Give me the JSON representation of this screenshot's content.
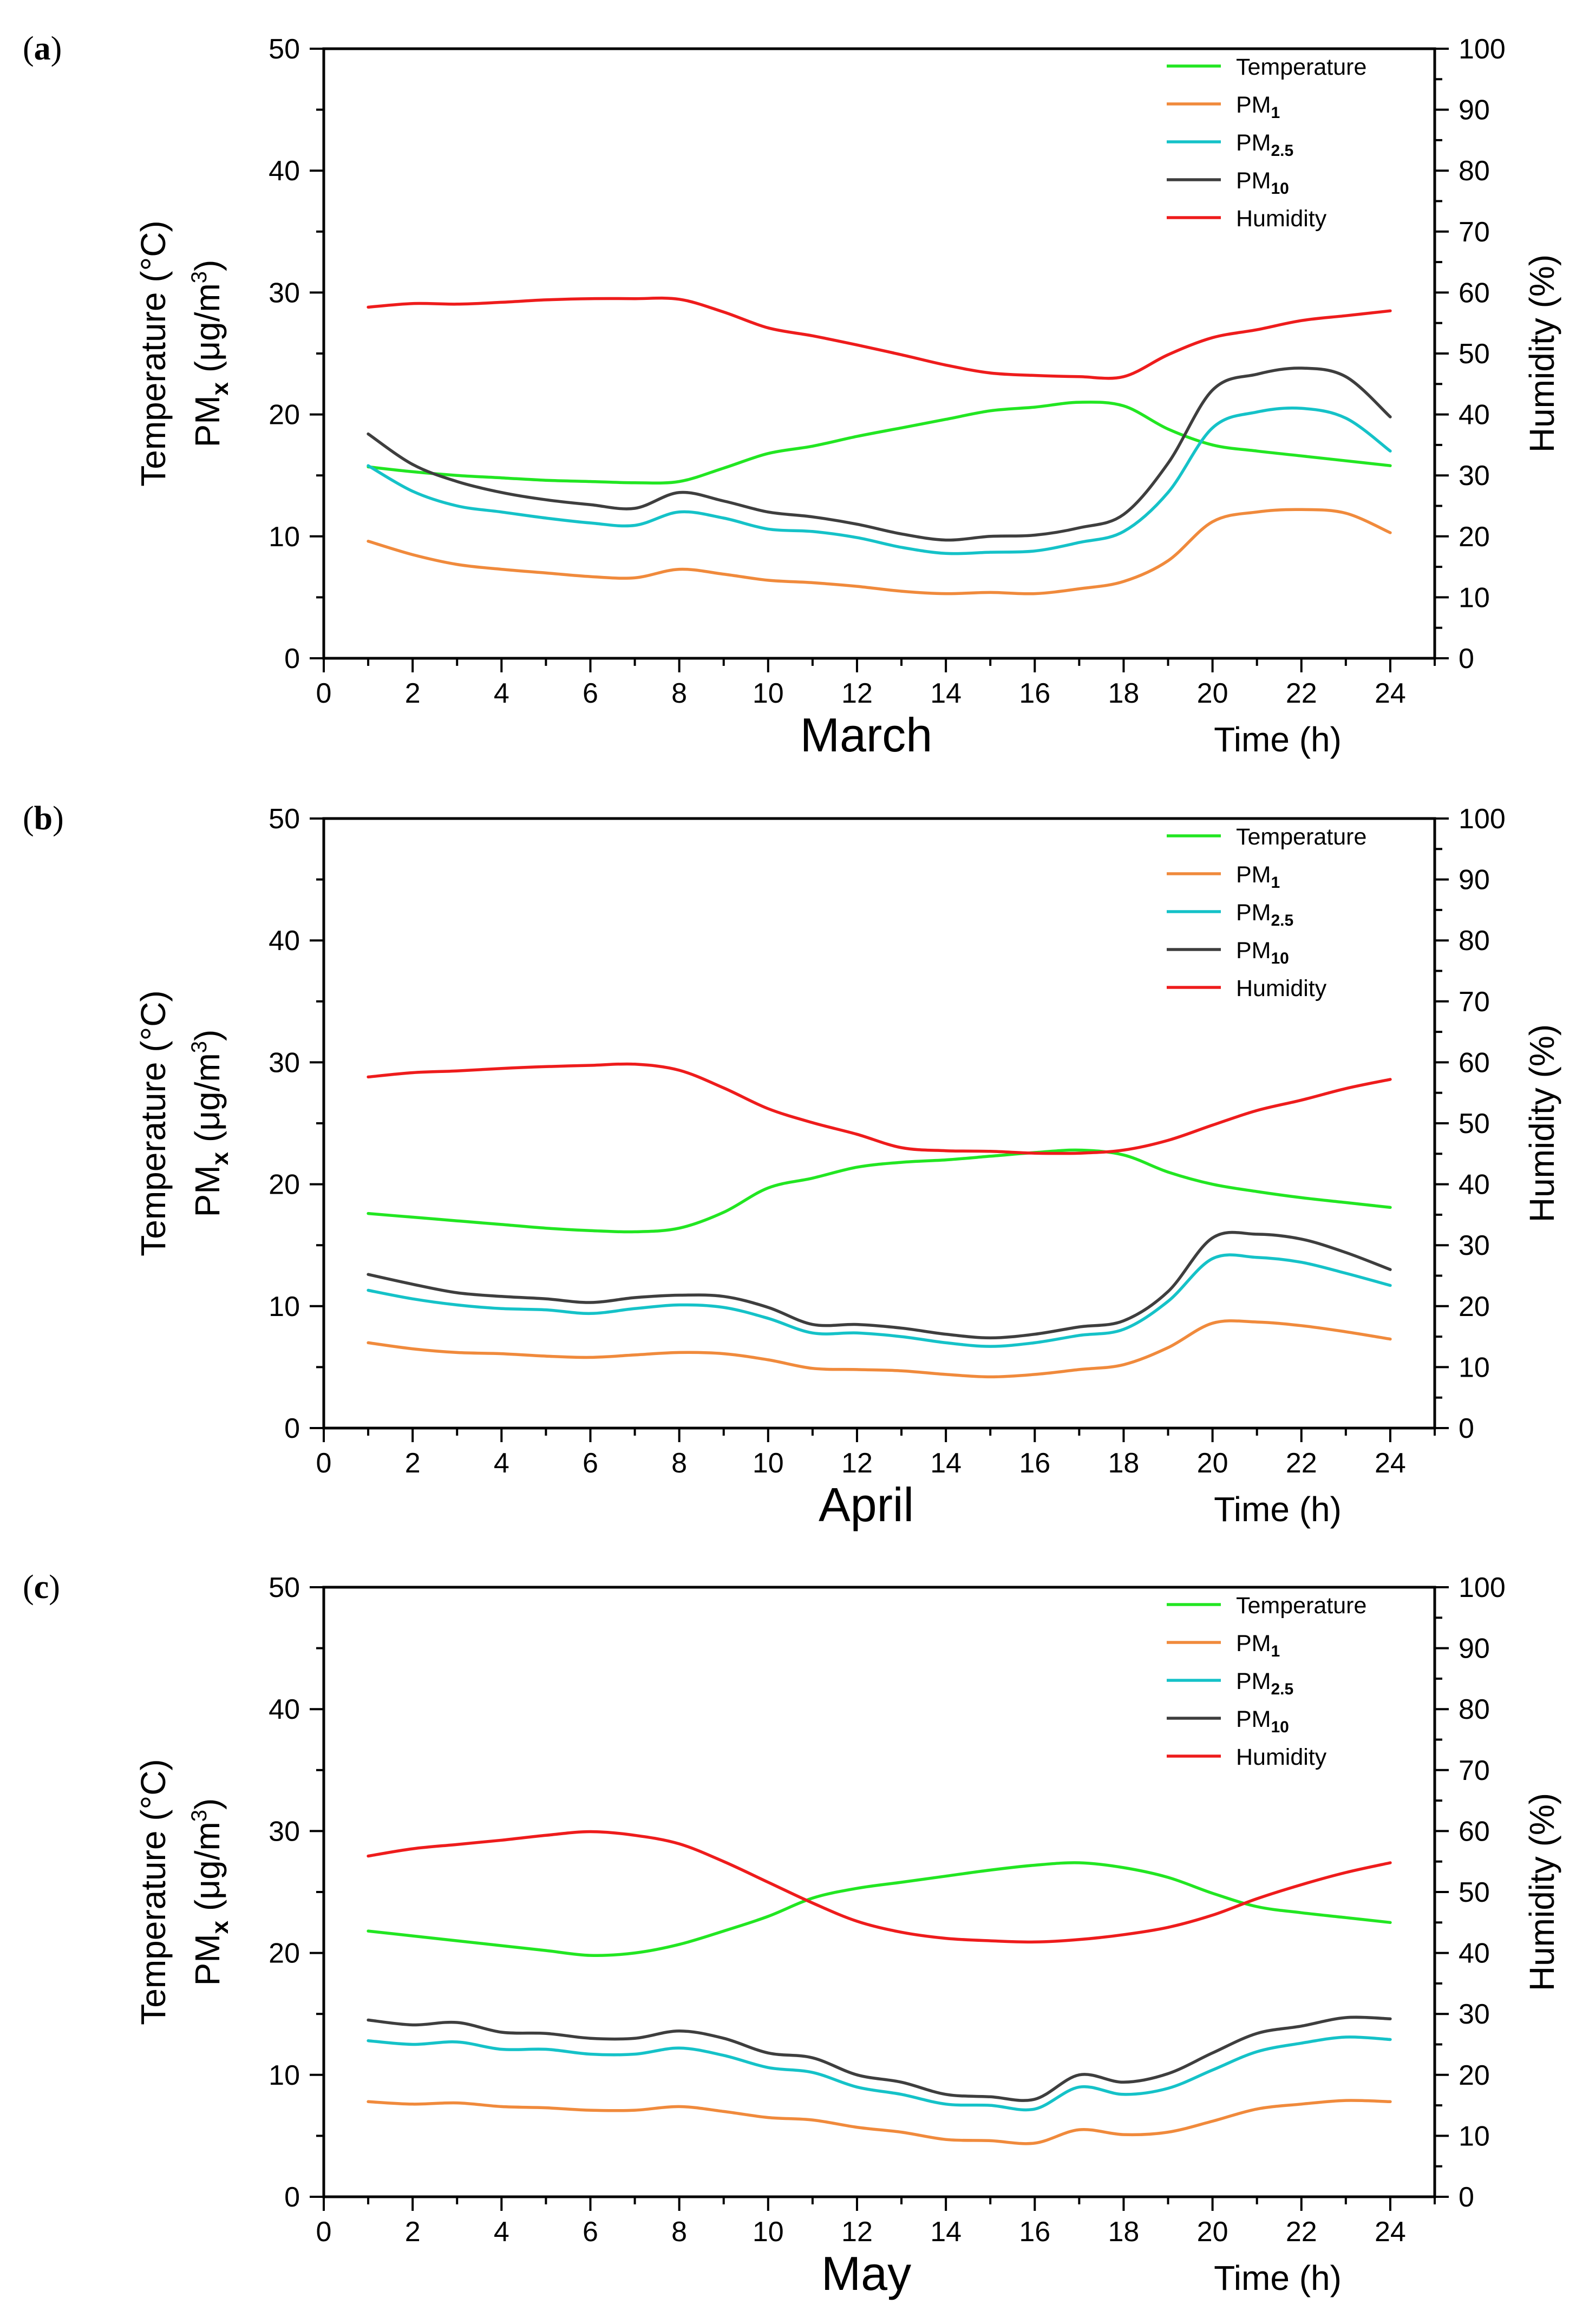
{
  "chart_data": [
    {
      "type": "line",
      "panel_label": "a",
      "title": "March",
      "xlabel": "Time (h)",
      "ylabel_left_line1": "Temperature (°C)",
      "ylabel_left_line2": "PM",
      "ylabel_left_sub": "x",
      "ylabel_left_unit_pre": " (μg/m",
      "ylabel_left_sup": "3",
      "ylabel_left_unit_post": ")",
      "ylabel_right": "Humidity (%)",
      "xlim": [
        0,
        25
      ],
      "ylim": [
        0,
        50
      ],
      "y2lim": [
        0,
        100
      ],
      "xticks": [
        "0",
        "2",
        "4",
        "6",
        "8",
        "10",
        "12",
        "14",
        "16",
        "18",
        "20",
        "22",
        "24"
      ],
      "yticks": [
        "0",
        "10",
        "20",
        "30",
        "40",
        "50"
      ],
      "y2ticks": [
        "0",
        "10",
        "20",
        "30",
        "40",
        "50",
        "60",
        "70",
        "80",
        "90",
        "100"
      ],
      "legend_position": "top-right",
      "x": [
        1,
        2,
        3,
        4,
        5,
        6,
        7,
        8,
        9,
        10,
        11,
        12,
        13,
        14,
        15,
        16,
        17,
        18,
        19,
        20,
        21,
        22,
        23,
        24
      ],
      "series": [
        {
          "name": "Temperature",
          "sub": "",
          "color": "#22e622",
          "axis": "left",
          "values": [
            15.7,
            15.3,
            15.0,
            14.8,
            14.6,
            14.5,
            14.4,
            14.5,
            15.6,
            16.8,
            17.4,
            18.2,
            18.9,
            19.6,
            20.3,
            20.6,
            21.0,
            20.7,
            18.8,
            17.5,
            17.0,
            16.6,
            16.2,
            15.8
          ]
        },
        {
          "name": "PM",
          "sub": "1",
          "color": "#f08a3c",
          "axis": "left",
          "values": [
            9.6,
            8.5,
            7.7,
            7.3,
            7.0,
            6.7,
            6.6,
            7.3,
            6.9,
            6.4,
            6.2,
            5.9,
            5.5,
            5.3,
            5.4,
            5.3,
            5.7,
            6.3,
            8.0,
            11.2,
            12.0,
            12.2,
            11.9,
            10.3
          ]
        },
        {
          "name": "PM",
          "sub": "2.5",
          "color": "#15c2c8",
          "axis": "left",
          "values": [
            15.8,
            13.7,
            12.5,
            12.0,
            11.5,
            11.1,
            10.9,
            12.0,
            11.5,
            10.6,
            10.4,
            9.9,
            9.1,
            8.6,
            8.7,
            8.8,
            9.5,
            10.4,
            13.6,
            18.9,
            20.2,
            20.5,
            19.7,
            17.0
          ]
        },
        {
          "name": "PM",
          "sub": "10",
          "color": "#3e3e3e",
          "axis": "left",
          "values": [
            18.4,
            15.9,
            14.5,
            13.6,
            13.0,
            12.6,
            12.3,
            13.6,
            12.9,
            12.0,
            11.6,
            11.0,
            10.2,
            9.7,
            10.0,
            10.1,
            10.7,
            11.8,
            16.0,
            22.0,
            23.3,
            23.8,
            23.1,
            19.8
          ]
        },
        {
          "name": "Humidity",
          "sub": "",
          "color": "#ee1c1c",
          "axis": "right",
          "values": [
            57.6,
            58.2,
            58.1,
            58.4,
            58.8,
            59.0,
            59.0,
            58.9,
            56.8,
            54.2,
            52.9,
            51.4,
            49.8,
            48.1,
            46.8,
            46.4,
            46.2,
            46.2,
            49.8,
            52.6,
            53.9,
            55.4,
            56.2,
            57.0
          ]
        }
      ]
    },
    {
      "type": "line",
      "panel_label": "b",
      "title": "April",
      "xlabel": "Time (h)",
      "ylabel_left_line1": "Temperature (°C)",
      "ylabel_left_line2": "PM",
      "ylabel_left_sub": "x",
      "ylabel_left_unit_pre": " (μg/m",
      "ylabel_left_sup": "3",
      "ylabel_left_unit_post": ")",
      "ylabel_right": "Humidity (%)",
      "xlim": [
        0,
        25
      ],
      "ylim": [
        0,
        50
      ],
      "y2lim": [
        0,
        100
      ],
      "xticks": [
        "0",
        "2",
        "4",
        "6",
        "8",
        "10",
        "12",
        "14",
        "16",
        "18",
        "20",
        "22",
        "24"
      ],
      "yticks": [
        "0",
        "10",
        "20",
        "30",
        "40",
        "50"
      ],
      "y2ticks": [
        "0",
        "10",
        "20",
        "30",
        "40",
        "50",
        "60",
        "70",
        "80",
        "90",
        "100"
      ],
      "legend_position": "top-right",
      "x": [
        1,
        2,
        3,
        4,
        5,
        6,
        7,
        8,
        9,
        10,
        11,
        12,
        13,
        14,
        15,
        16,
        17,
        18,
        19,
        20,
        21,
        22,
        23,
        24
      ],
      "series": [
        {
          "name": "Temperature",
          "sub": "",
          "color": "#22e622",
          "axis": "left",
          "values": [
            17.6,
            17.3,
            17.0,
            16.7,
            16.4,
            16.2,
            16.1,
            16.4,
            17.7,
            19.7,
            20.5,
            21.4,
            21.8,
            22.0,
            22.3,
            22.6,
            22.8,
            22.4,
            21.0,
            20.0,
            19.4,
            18.9,
            18.5,
            18.1
          ]
        },
        {
          "name": "PM",
          "sub": "1",
          "color": "#f08a3c",
          "axis": "left",
          "values": [
            7.0,
            6.5,
            6.2,
            6.1,
            5.9,
            5.8,
            6.0,
            6.2,
            6.1,
            5.6,
            4.9,
            4.8,
            4.7,
            4.4,
            4.2,
            4.4,
            4.8,
            5.2,
            6.6,
            8.6,
            8.7,
            8.4,
            7.9,
            7.3
          ]
        },
        {
          "name": "PM",
          "sub": "2.5",
          "color": "#15c2c8",
          "axis": "left",
          "values": [
            11.3,
            10.6,
            10.1,
            9.8,
            9.7,
            9.4,
            9.8,
            10.1,
            9.9,
            9.0,
            7.8,
            7.8,
            7.5,
            7.0,
            6.7,
            7.0,
            7.6,
            8.1,
            10.4,
            13.9,
            14.0,
            13.6,
            12.7,
            11.7
          ]
        },
        {
          "name": "PM",
          "sub": "10",
          "color": "#3e3e3e",
          "axis": "left",
          "values": [
            12.6,
            11.8,
            11.1,
            10.8,
            10.6,
            10.3,
            10.7,
            10.9,
            10.8,
            9.9,
            8.5,
            8.5,
            8.2,
            7.7,
            7.4,
            7.7,
            8.3,
            8.8,
            11.2,
            15.6,
            15.9,
            15.5,
            14.4,
            13.0
          ]
        },
        {
          "name": "Humidity",
          "sub": "",
          "color": "#ee1c1c",
          "axis": "right",
          "values": [
            57.6,
            58.3,
            58.6,
            59.0,
            59.3,
            59.5,
            59.7,
            58.7,
            55.8,
            52.4,
            50.1,
            48.2,
            46.0,
            45.5,
            45.4,
            45.1,
            45.1,
            45.6,
            47.2,
            49.7,
            52.1,
            53.8,
            55.7,
            57.2
          ]
        }
      ]
    },
    {
      "type": "line",
      "panel_label": "c",
      "title": "May",
      "xlabel": "Time (h)",
      "ylabel_left_line1": "Temperature (°C)",
      "ylabel_left_line2": "PM",
      "ylabel_left_sub": "x",
      "ylabel_left_unit_pre": " (μg/m",
      "ylabel_left_sup": "3",
      "ylabel_left_unit_post": ")",
      "ylabel_right": "Humidity (%)",
      "xlim": [
        0,
        25
      ],
      "ylim": [
        0,
        50
      ],
      "y2lim": [
        0,
        100
      ],
      "xticks": [
        "0",
        "2",
        "4",
        "6",
        "8",
        "10",
        "12",
        "14",
        "16",
        "18",
        "20",
        "22",
        "24"
      ],
      "yticks": [
        "0",
        "10",
        "20",
        "30",
        "40",
        "50"
      ],
      "y2ticks": [
        "0",
        "10",
        "20",
        "30",
        "40",
        "50",
        "60",
        "70",
        "80",
        "90",
        "100"
      ],
      "legend_position": "top-right",
      "x": [
        1,
        2,
        3,
        4,
        5,
        6,
        7,
        8,
        9,
        10,
        11,
        12,
        13,
        14,
        15,
        16,
        17,
        18,
        19,
        20,
        21,
        22,
        23,
        24
      ],
      "series": [
        {
          "name": "Temperature",
          "sub": "",
          "color": "#22e622",
          "axis": "left",
          "values": [
            21.8,
            21.4,
            21.0,
            20.6,
            20.2,
            19.8,
            20.0,
            20.7,
            21.8,
            23.0,
            24.5,
            25.3,
            25.8,
            26.3,
            26.8,
            27.2,
            27.4,
            27.0,
            26.2,
            24.9,
            23.8,
            23.3,
            22.9,
            22.5
          ]
        },
        {
          "name": "PM",
          "sub": "1",
          "color": "#f08a3c",
          "axis": "left",
          "values": [
            7.8,
            7.6,
            7.7,
            7.4,
            7.3,
            7.1,
            7.1,
            7.4,
            7.0,
            6.5,
            6.3,
            5.7,
            5.3,
            4.7,
            4.6,
            4.4,
            5.5,
            5.1,
            5.3,
            6.2,
            7.2,
            7.6,
            7.9,
            7.8
          ]
        },
        {
          "name": "PM",
          "sub": "2.5",
          "color": "#15c2c8",
          "axis": "left",
          "values": [
            12.8,
            12.5,
            12.7,
            12.1,
            12.1,
            11.7,
            11.7,
            12.2,
            11.6,
            10.6,
            10.2,
            9.0,
            8.4,
            7.6,
            7.5,
            7.2,
            9.0,
            8.4,
            8.9,
            10.4,
            11.9,
            12.6,
            13.1,
            12.9
          ]
        },
        {
          "name": "PM",
          "sub": "10",
          "color": "#3e3e3e",
          "axis": "left",
          "values": [
            14.5,
            14.1,
            14.3,
            13.5,
            13.4,
            13.0,
            13.0,
            13.6,
            13.0,
            11.8,
            11.4,
            10.0,
            9.4,
            8.4,
            8.2,
            8.0,
            10.0,
            9.4,
            10.1,
            11.8,
            13.4,
            14.0,
            14.7,
            14.6
          ]
        },
        {
          "name": "Humidity",
          "sub": "",
          "color": "#ee1c1c",
          "axis": "right",
          "values": [
            55.9,
            57.1,
            57.8,
            58.5,
            59.3,
            59.9,
            59.3,
            57.9,
            55.0,
            51.6,
            48.2,
            45.2,
            43.4,
            42.4,
            42.0,
            41.8,
            42.2,
            43.0,
            44.2,
            46.2,
            48.9,
            51.2,
            53.2,
            54.8
          ]
        }
      ]
    }
  ]
}
